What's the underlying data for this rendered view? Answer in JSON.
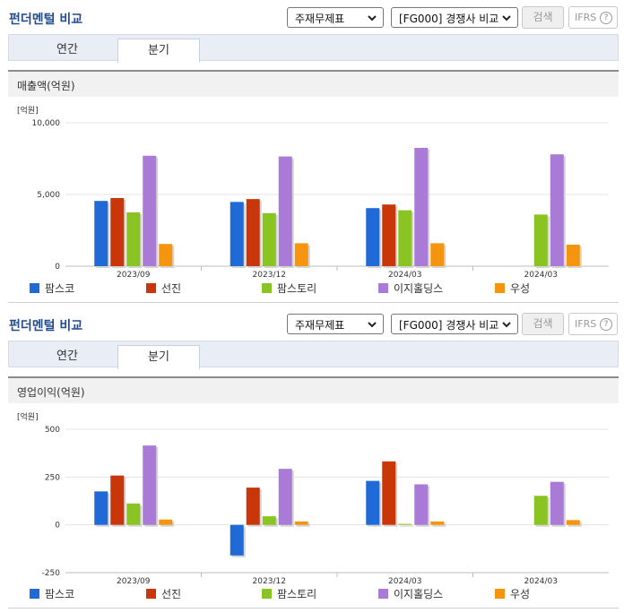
{
  "colors": {
    "accent": "#244d8f",
    "series": [
      "#1f6ad6",
      "#c9360a",
      "#8ac422",
      "#a97ad6",
      "#f5950f"
    ]
  },
  "sections": [
    {
      "title": "펀더멘털 비교",
      "select_statement": "주재무제표",
      "select_compare": "[FG000] 경쟁사 비교",
      "search_label": "검색",
      "ifrs_label": "IFRS",
      "ifrs_help": "?",
      "tabs": [
        "연간",
        "분기"
      ],
      "active_tab": "분기",
      "panel_title": "매출액(억원)",
      "unit_label": "[억원]",
      "legend": [
        "팜스코",
        "선진",
        "팜스토리",
        "이지홀딩스",
        "우성"
      ]
    },
    {
      "title": "펀더멘털 비교",
      "select_statement": "주재무제표",
      "select_compare": "[FG000] 경쟁사 비교",
      "search_label": "검색",
      "ifrs_label": "IFRS",
      "ifrs_help": "?",
      "tabs": [
        "연간",
        "분기"
      ],
      "active_tab": "분기",
      "panel_title": "영업이익(억원)",
      "unit_label": "[억원]",
      "legend": [
        "팜스코",
        "선진",
        "팜스토리",
        "이지홀딩스",
        "우성"
      ]
    }
  ],
  "chart_data": [
    {
      "type": "bar",
      "title": "매출액(억원)",
      "ylabel": "[억원]",
      "categories": [
        "2023/09",
        "2023/12",
        "2024/03",
        "2024/03"
      ],
      "ylim": [
        0,
        10000
      ],
      "yticks": [
        "0",
        "5,000",
        "10,000"
      ],
      "ytick_values": [
        0,
        5000,
        10000
      ],
      "series": [
        {
          "name": "팜스코",
          "values": [
            4550,
            4480,
            4050,
            null
          ]
        },
        {
          "name": "선진",
          "values": [
            4750,
            4680,
            4300,
            null
          ]
        },
        {
          "name": "팜스토리",
          "values": [
            3750,
            3700,
            3900,
            3600
          ]
        },
        {
          "name": "이지홀딩스",
          "values": [
            7700,
            7650,
            8250,
            7800
          ]
        },
        {
          "name": "우성",
          "values": [
            1550,
            1600,
            1600,
            1500
          ]
        }
      ]
    },
    {
      "type": "bar",
      "title": "영업이익(억원)",
      "ylabel": "[억원]",
      "categories": [
        "2023/09",
        "2023/12",
        "2024/03",
        "2024/03"
      ],
      "ylim": [
        -250,
        500
      ],
      "yticks": [
        "-250",
        "0",
        "250",
        "500"
      ],
      "ytick_values": [
        -250,
        0,
        250,
        500
      ],
      "series": [
        {
          "name": "팜스코",
          "values": [
            175,
            -160,
            230,
            null
          ]
        },
        {
          "name": "선진",
          "values": [
            258,
            195,
            332,
            null
          ]
        },
        {
          "name": "팜스토리",
          "values": [
            112,
            45,
            5,
            152
          ]
        },
        {
          "name": "이지홀딩스",
          "values": [
            415,
            293,
            212,
            225
          ]
        },
        {
          "name": "우성",
          "values": [
            28,
            18,
            18,
            25
          ]
        }
      ]
    }
  ]
}
